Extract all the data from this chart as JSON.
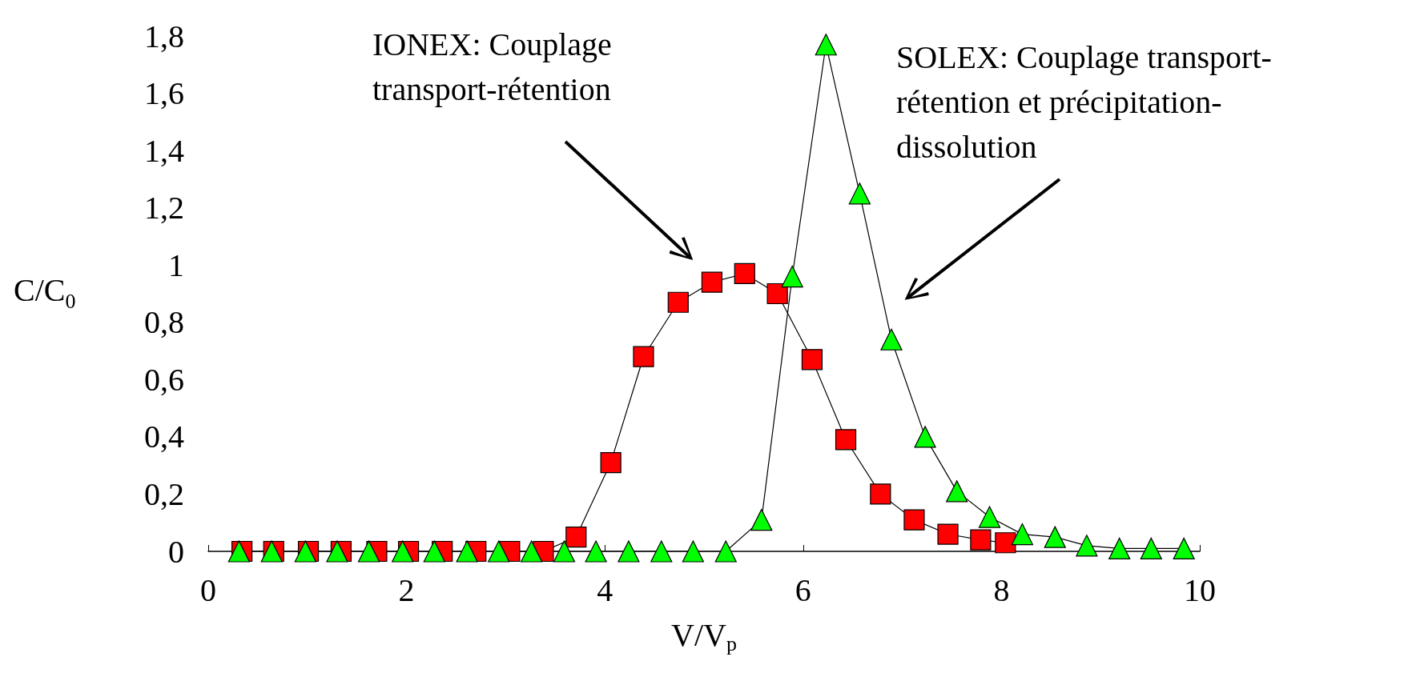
{
  "chart_data": {
    "type": "line",
    "xlabel": "V/V$_{p}$",
    "ylabel": "C/C$_{0}$",
    "xlim": [
      0,
      10
    ],
    "xticks": [
      0,
      2,
      4,
      6,
      8,
      10
    ],
    "ylim": [
      0,
      1.8
    ],
    "yticks": [
      0,
      {
        "value": 0.2,
        "label": "0,2"
      },
      {
        "value": 0.4,
        "label": "0,4"
      },
      {
        "value": 0.6,
        "label": "0,6"
      },
      {
        "value": 0.8,
        "label": "0,8"
      },
      1,
      {
        "value": 1.2,
        "label": "1,2"
      },
      {
        "value": 1.4,
        "label": "1,4"
      },
      {
        "value": 1.6,
        "label": "1,6"
      },
      {
        "value": 1.8,
        "label": "1,8"
      }
    ],
    "grid": false,
    "series": [
      {
        "color": "#ff0000",
        "marker": "square",
        "x": [
          0.34,
          0.66,
          1.01,
          1.34,
          1.7,
          2.02,
          2.36,
          2.7,
          3.04,
          3.38,
          3.71,
          4.06,
          4.39,
          4.74,
          5.08,
          5.41,
          5.74,
          6.09,
          6.43,
          6.78,
          7.12,
          7.46,
          7.79,
          8.04
        ],
        "values": [
          0,
          0,
          0,
          0,
          0,
          0,
          0,
          0,
          0,
          0,
          0.05,
          0.31,
          0.68,
          0.87,
          0.94,
          0.97,
          0.9,
          0.67,
          0.39,
          0.2,
          0.11,
          0.06,
          0.04,
          0.03
        ]
      },
      {
        "color": "#00ff00",
        "marker": "triangle",
        "x": [
          0.31,
          0.64,
          0.98,
          1.3,
          1.62,
          1.96,
          2.28,
          2.61,
          2.93,
          3.26,
          3.59,
          3.91,
          4.24,
          4.57,
          4.89,
          5.22,
          5.58,
          5.89,
          6.23,
          6.57,
          6.89,
          7.23,
          7.55,
          7.88,
          8.21,
          8.54,
          8.86,
          9.19,
          9.51,
          9.84
        ],
        "values": [
          0,
          0,
          0,
          0,
          0,
          0,
          0,
          0,
          0,
          0,
          0,
          0,
          0,
          0,
          0,
          0,
          0.11,
          0.96,
          1.77,
          1.25,
          0.74,
          0.4,
          0.21,
          0.12,
          0.06,
          0.05,
          0.02,
          0.01,
          0.01,
          0.01
        ]
      }
    ],
    "annotations": [
      "IONEX: Couplage\ntransport-rétention",
      "SOLEX: Couplage transport-\nrétention et précipitation-\ndissolution"
    ]
  }
}
